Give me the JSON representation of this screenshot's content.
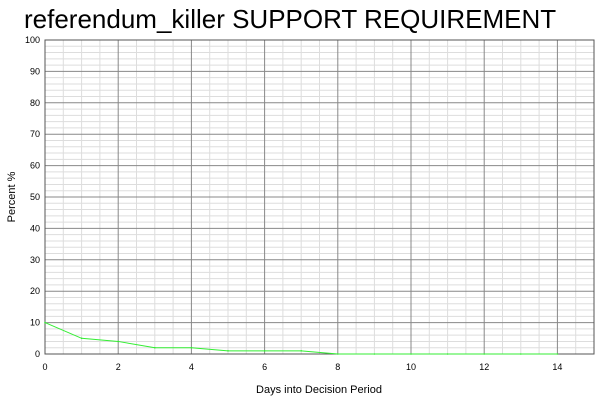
{
  "chart_data": {
    "type": "line",
    "title": "referendum_killer SUPPORT REQUIREMENT",
    "xlabel": "Days into Decision Period",
    "ylabel": "Percent %",
    "xlim": [
      0,
      15
    ],
    "ylim": [
      0,
      100
    ],
    "x_ticks": [
      0,
      2,
      4,
      6,
      8,
      10,
      12,
      14
    ],
    "y_ticks": [
      0,
      10,
      20,
      30,
      40,
      50,
      60,
      70,
      80,
      90,
      100
    ],
    "grid": true,
    "line_color": "#33ee33",
    "series": [
      {
        "x": [
          0,
          1,
          2,
          3,
          4,
          5,
          6,
          7,
          8,
          9,
          10,
          11,
          12,
          13,
          14
        ],
        "values": [
          10,
          5,
          4,
          2,
          2,
          1,
          1,
          1,
          0,
          0,
          0,
          0,
          0,
          0,
          0
        ]
      }
    ]
  }
}
